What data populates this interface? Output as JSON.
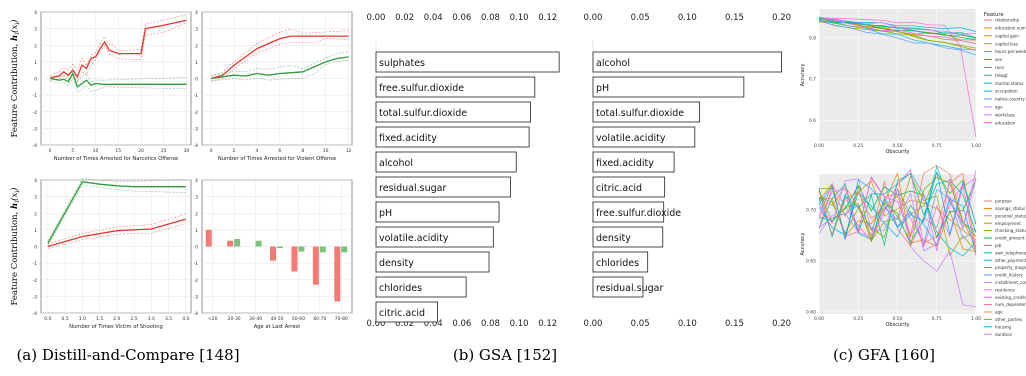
{
  "captions": {
    "a": "(a) Distill-and-Compare [148]",
    "b": "(b) GSA [152]",
    "c": "(c) GFA [160]"
  },
  "colors": {
    "red": "#e8352f",
    "green": "#2f9a3a",
    "bar_red": "#f57a76",
    "bar_green": "#7cc47c",
    "panel_grey": "#ebebeb"
  },
  "chart_data": [
    {
      "id": "dc-narcotics",
      "type": "line",
      "xlabel": "Number of Times Arrested for Narcotics Offense",
      "ylabel": "Feature Contribution, h_i(x_i)",
      "xticks": [
        0,
        5,
        10,
        15,
        20,
        25,
        30
      ],
      "yticks": [
        -4,
        -3,
        -2,
        -1,
        0,
        1,
        2,
        3,
        4
      ],
      "xlim": [
        -2,
        31
      ],
      "ylim": [
        -4,
        4
      ],
      "series": [
        {
          "color": "red",
          "x": [
            0,
            1,
            2,
            3,
            4,
            5,
            6,
            7,
            8,
            9,
            10,
            11,
            12,
            13,
            14,
            15,
            16,
            20,
            21,
            25,
            30
          ],
          "y": [
            0,
            0.1,
            0.15,
            0.4,
            0.2,
            0.5,
            0.1,
            0.8,
            0.6,
            1.2,
            1.3,
            1.8,
            2.2,
            1.7,
            1.6,
            1.5,
            1.5,
            1.5,
            3.0,
            3.2,
            3.5
          ]
        },
        {
          "color": "green",
          "x": [
            0,
            2,
            3,
            4,
            5,
            6,
            7,
            8,
            9,
            10,
            12,
            15,
            20,
            25,
            30
          ],
          "y": [
            0,
            -0.1,
            -0.05,
            -0.2,
            0.3,
            -0.5,
            -0.3,
            -0.1,
            -0.4,
            -0.3,
            -0.35,
            -0.35,
            -0.35,
            -0.35,
            -0.35
          ]
        }
      ]
    },
    {
      "id": "dc-violent",
      "type": "line",
      "xlabel": "Number of Times Arrested for Violent Offense",
      "ylabel": "",
      "xticks": [
        0,
        2,
        4,
        6,
        8,
        10,
        12
      ],
      "yticks": [
        -4,
        -3,
        -2,
        -1,
        0,
        1,
        2,
        3,
        4
      ],
      "xlim": [
        -0.8,
        12.3
      ],
      "ylim": [
        -4,
        4
      ],
      "series": [
        {
          "color": "red",
          "x": [
            0,
            1,
            2,
            3,
            4,
            5,
            6,
            7,
            8,
            9,
            10,
            11,
            12
          ],
          "y": [
            0,
            0.2,
            0.8,
            1.3,
            1.8,
            2.1,
            2.4,
            2.55,
            2.55,
            2.55,
            2.55,
            2.55,
            2.55
          ]
        },
        {
          "color": "green",
          "x": [
            0,
            1,
            2,
            3,
            4,
            5,
            6,
            7,
            8,
            9,
            10,
            11,
            12
          ],
          "y": [
            0,
            0.1,
            0.2,
            0.15,
            0.3,
            0.2,
            0.3,
            0.35,
            0.4,
            0.7,
            1.0,
            1.2,
            1.3
          ]
        }
      ]
    },
    {
      "id": "dc-shooting",
      "type": "line",
      "xlabel": "Number of Times Victim of Shooting",
      "ylabel": "Feature Contribution, h_i(x_i)",
      "xticks": [
        "0.0",
        "0.5",
        "1.0",
        "1.5",
        "2.0",
        "2.5",
        "3.0",
        "3.5",
        "4.0"
      ],
      "yticks": [
        -4,
        -3,
        -2,
        -1,
        0,
        1,
        2,
        3,
        4
      ],
      "xlim": [
        -0.2,
        4.15
      ],
      "ylim": [
        -4,
        4
      ],
      "series": [
        {
          "color": "green",
          "x": [
            0,
            1,
            1.5,
            2,
            2.5,
            3,
            3.5,
            4
          ],
          "y": [
            0.2,
            3.9,
            3.75,
            3.65,
            3.6,
            3.6,
            3.6,
            3.6
          ]
        },
        {
          "color": "red",
          "x": [
            0,
            1,
            2,
            3,
            4
          ],
          "y": [
            0,
            0.6,
            0.95,
            1.05,
            1.65
          ]
        }
      ]
    },
    {
      "id": "dc-age",
      "type": "bar",
      "xlabel": "Age at Last Arrest",
      "ylabel": "",
      "categories": [
        "<20",
        "20-30",
        "30-40",
        "40-50",
        "50-60",
        "60-70",
        "70-80"
      ],
      "yticks": [
        -4,
        -3,
        -2,
        -1,
        0,
        1,
        2,
        3,
        4
      ],
      "ylim": [
        -4,
        4
      ],
      "series": [
        {
          "color": "red",
          "values": [
            1.0,
            0.35,
            0.0,
            -0.85,
            -1.5,
            -2.3,
            -3.3
          ]
        },
        {
          "color": "green",
          "values": [
            0.0,
            0.45,
            0.35,
            -0.1,
            -0.3,
            -0.35,
            -0.35
          ]
        }
      ]
    },
    {
      "id": "gsa-left",
      "type": "bar",
      "orientation": "horizontal",
      "ticks": [
        "0.00",
        "0.02",
        "0.04",
        "0.06",
        "0.08",
        "0.10",
        "0.12"
      ],
      "xlim": [
        0,
        0.13
      ],
      "categories": [
        "sulphates",
        "free.sulfur.dioxide",
        "total.sulfur.dioxide",
        "fixed.acidity",
        "alcohol",
        "residual.sugar",
        "pH",
        "volatile.acidity",
        "density",
        "chlorides",
        "citric.acid"
      ],
      "values": [
        0.128,
        0.111,
        0.108,
        0.107,
        0.098,
        0.094,
        0.086,
        0.082,
        0.079,
        0.063,
        0.043
      ]
    },
    {
      "id": "gsa-right",
      "type": "bar",
      "orientation": "horizontal",
      "ticks": [
        "0.00",
        "0.05",
        "0.10",
        "0.15",
        "0.20"
      ],
      "xlim": [
        0,
        0.21
      ],
      "categories": [
        "alcohol",
        "pH",
        "total.sulfur.dioxide",
        "volatile.acidity",
        "fixed.acidity",
        "citric.acid",
        "free.sulfur.dioxide",
        "density",
        "chlorides",
        "residual.sugar"
      ],
      "values": [
        0.2,
        0.16,
        0.113,
        0.108,
        0.086,
        0.076,
        0.075,
        0.074,
        0.058,
        0.053
      ]
    },
    {
      "id": "gfa-top",
      "type": "line",
      "xlabel": "Obscurity",
      "ylabel": "Accuracy",
      "xticks": [
        "0.00",
        "0.25",
        "0.50",
        "0.75",
        "1.00"
      ],
      "yticks": [
        "0.6",
        "0.7",
        "0.8"
      ],
      "xlim": [
        0,
        1
      ],
      "ylim": [
        0.55,
        0.87
      ],
      "legend_title": "Feature",
      "legend": [
        "relationship",
        "education.num",
        "capital.gain",
        "capital.loss",
        "hours.per.week",
        "sex",
        "race",
        "fnlwgt",
        "marital.status",
        "occupation",
        "native.country",
        "age",
        "workclass",
        "education"
      ]
    },
    {
      "id": "gfa-bottom",
      "type": "line",
      "xlabel": "Obscurity",
      "ylabel": "Accuracy",
      "xticks": [
        "0.00",
        "0.25",
        "0.50",
        "0.75",
        "1.00"
      ],
      "yticks": [
        "0.60",
        "0.65",
        "0.70"
      ],
      "xlim": [
        0,
        1
      ],
      "ylim": [
        0.598,
        0.735
      ],
      "legend": [
        "purpose",
        "savings_status",
        "personal_status",
        "employment",
        "checking_status",
        "credit_amount",
        "job",
        "own_telephone",
        "other_payment_plans",
        "property_magnitude",
        "credit_history",
        "installment_commitment",
        "residence",
        "existing_credits",
        "num_dependents",
        "age",
        "other_parties",
        "housing",
        "duration"
      ]
    }
  ]
}
